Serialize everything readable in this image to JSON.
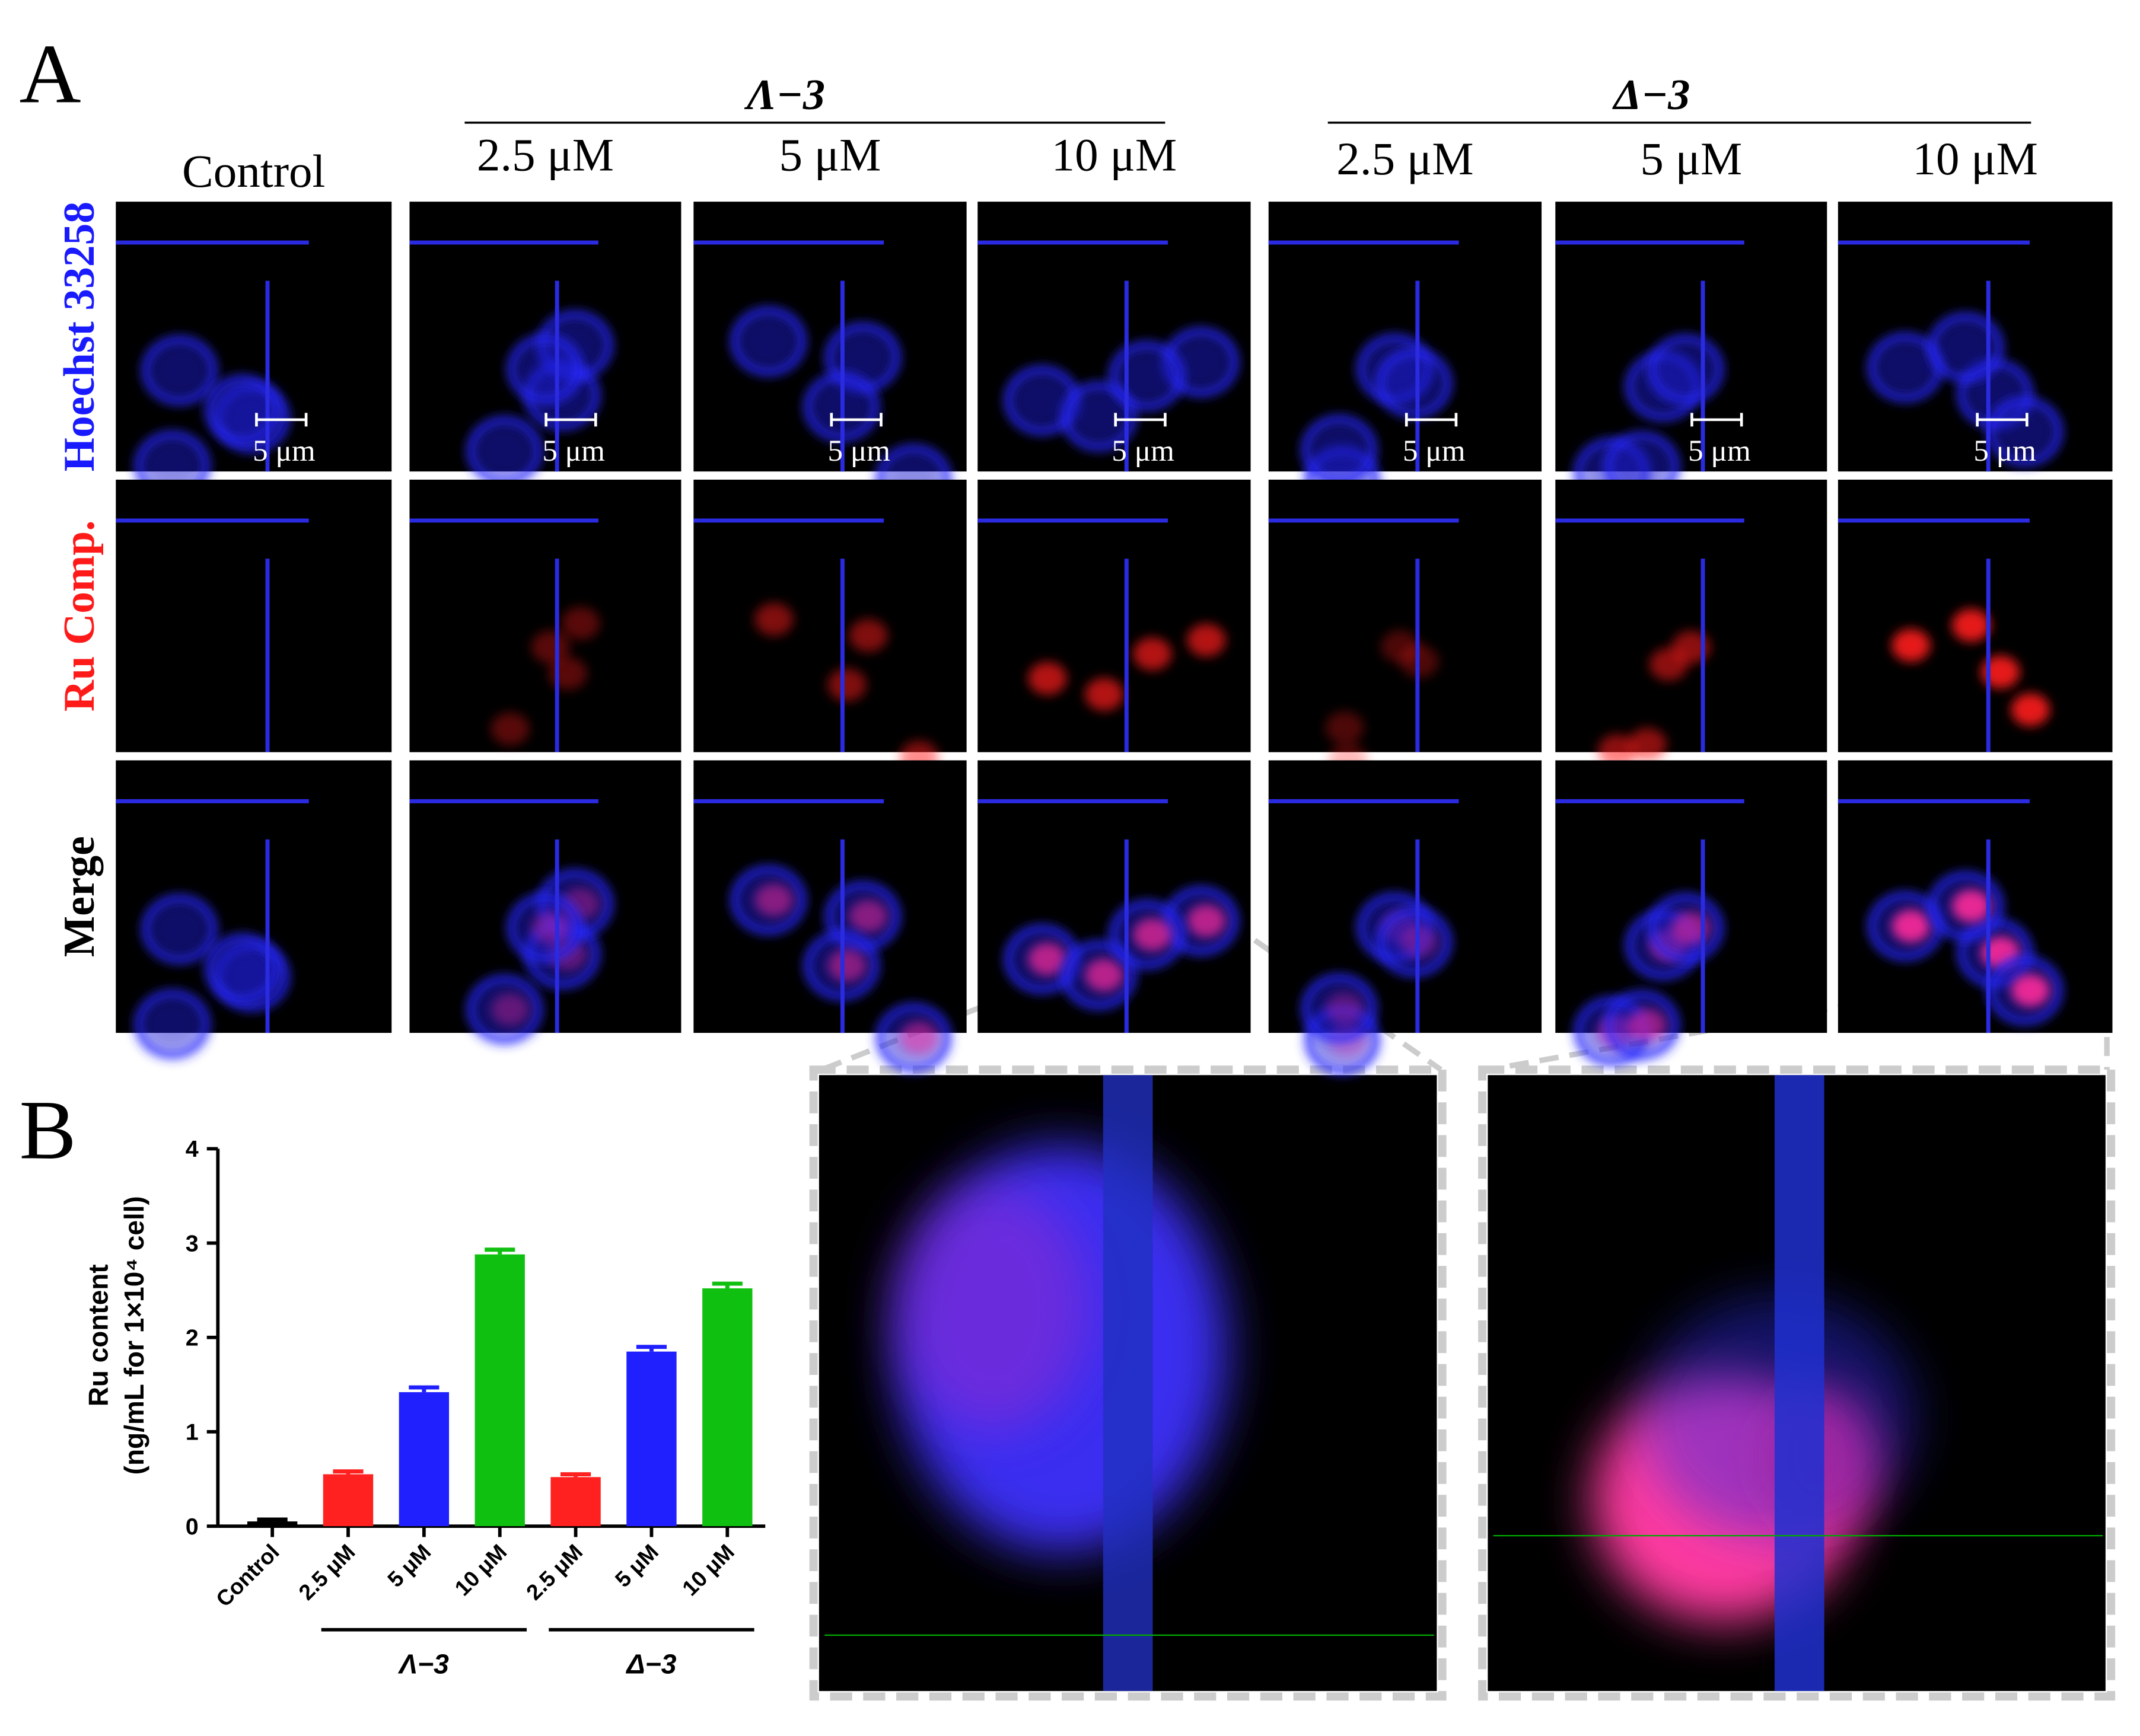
{
  "panel_a": {
    "label": "A",
    "groups": [
      "Λ−3",
      "Δ−3"
    ],
    "columns": [
      "Control",
      "2.5 μM",
      "5 μM",
      "10 μM",
      "2.5 μM",
      "5 μM",
      "10 μM"
    ],
    "rows": [
      "Hoechst 33258",
      "Ru Comp.",
      "Merge"
    ],
    "scale_bars": [
      "5 μm",
      "5 μm",
      "5 μm",
      "5 μm",
      "5 μm",
      "5 μm",
      "5 μm"
    ]
  },
  "panel_b": {
    "label": "B"
  },
  "chart_data": {
    "type": "bar",
    "y_label": [
      "Ru content",
      "(ng/mL for 1×10⁴ cell)"
    ],
    "categories": [
      "Control",
      "2.5 μM",
      "5 μM",
      "10 μM",
      "2.5 μM",
      "5 μM",
      "10 μM"
    ],
    "values": [
      0.05,
      0.55,
      1.42,
      2.88,
      0.52,
      1.85,
      2.52
    ],
    "errors": [
      0.02,
      0.03,
      0.05,
      0.05,
      0.03,
      0.05,
      0.05
    ],
    "colors": [
      "#000000",
      "#ff2020",
      "#2020ff",
      "#10c010",
      "#ff2020",
      "#2020ff",
      "#10c010"
    ],
    "group_labels": [
      "Λ−3",
      "Δ−3"
    ],
    "ylim": [
      0,
      4
    ],
    "yticks": [
      0,
      1,
      2,
      3,
      4
    ]
  }
}
